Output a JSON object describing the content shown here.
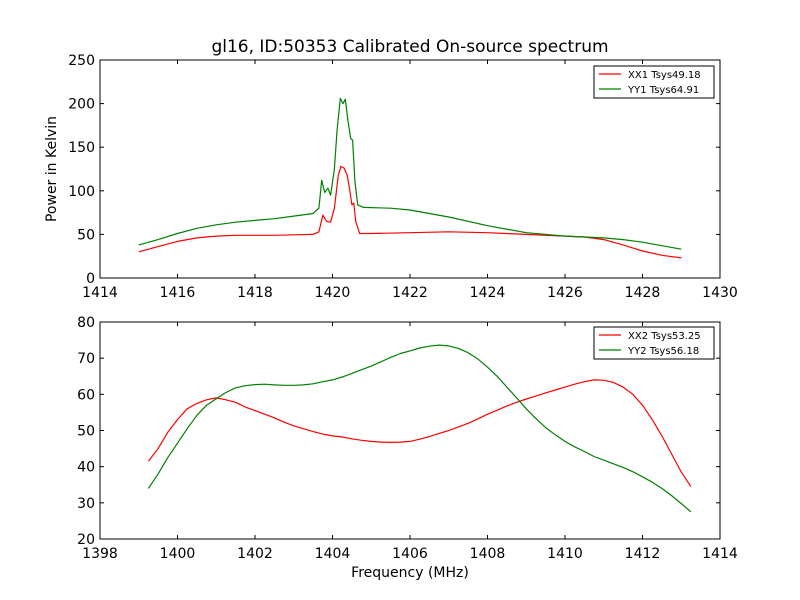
{
  "chart_data": [
    {
      "type": "line",
      "title": "gl16, ID:50353 Calibrated On-source spectrum",
      "xlabel": "",
      "ylabel": "Power in Kelvin",
      "xlim": [
        1414,
        1430
      ],
      "ylim": [
        0,
        250
      ],
      "xticks": [
        "1414",
        "1416",
        "1418",
        "1420",
        "1422",
        "1424",
        "1426",
        "1428",
        "1430"
      ],
      "yticks": [
        "0",
        "50",
        "100",
        "150",
        "200",
        "250"
      ],
      "grid": false,
      "legend": "top-right",
      "series": [
        {
          "name": "XX1 Tsys49.18",
          "color": "#ff0000",
          "points": [
            [
              1415.0,
              30
            ],
            [
              1415.5,
              36
            ],
            [
              1416.0,
              42
            ],
            [
              1416.5,
              46
            ],
            [
              1417.0,
              48
            ],
            [
              1417.5,
              49
            ],
            [
              1418.0,
              49
            ],
            [
              1418.5,
              49
            ],
            [
              1419.0,
              49.5
            ],
            [
              1419.5,
              50
            ],
            [
              1419.65,
              53
            ],
            [
              1419.75,
              72
            ],
            [
              1419.85,
              65
            ],
            [
              1419.95,
              64
            ],
            [
              1420.05,
              80
            ],
            [
              1420.15,
              118
            ],
            [
              1420.22,
              128
            ],
            [
              1420.3,
              126
            ],
            [
              1420.38,
              118
            ],
            [
              1420.45,
              100
            ],
            [
              1420.5,
              84
            ],
            [
              1420.55,
              86
            ],
            [
              1420.6,
              65
            ],
            [
              1420.7,
              51
            ],
            [
              1421.0,
              51
            ],
            [
              1422.0,
              52
            ],
            [
              1423.0,
              53
            ],
            [
              1424.0,
              52
            ],
            [
              1425.0,
              50
            ],
            [
              1426.0,
              48
            ],
            [
              1426.5,
              47
            ],
            [
              1427.0,
              44
            ],
            [
              1427.5,
              38
            ],
            [
              1428.0,
              31
            ],
            [
              1428.5,
              26
            ],
            [
              1429.0,
              23
            ]
          ]
        },
        {
          "name": "YY1 Tsys64.91",
          "color": "#008000",
          "points": [
            [
              1415.0,
              38
            ],
            [
              1415.5,
              44
            ],
            [
              1416.0,
              51
            ],
            [
              1416.5,
              57
            ],
            [
              1417.0,
              61
            ],
            [
              1417.5,
              64
            ],
            [
              1418.0,
              66
            ],
            [
              1418.5,
              68
            ],
            [
              1419.0,
              71
            ],
            [
              1419.5,
              74
            ],
            [
              1419.65,
              80
            ],
            [
              1419.72,
              112
            ],
            [
              1419.8,
              98
            ],
            [
              1419.88,
              103
            ],
            [
              1419.95,
              95
            ],
            [
              1420.05,
              125
            ],
            [
              1420.12,
              170
            ],
            [
              1420.2,
              206
            ],
            [
              1420.27,
              200
            ],
            [
              1420.33,
              205
            ],
            [
              1420.4,
              180
            ],
            [
              1420.47,
              160
            ],
            [
              1420.52,
              158
            ],
            [
              1420.58,
              110
            ],
            [
              1420.65,
              84
            ],
            [
              1420.8,
              81
            ],
            [
              1421.5,
              80
            ],
            [
              1422.0,
              78
            ],
            [
              1423.0,
              70
            ],
            [
              1424.0,
              60
            ],
            [
              1425.0,
              52
            ],
            [
              1426.0,
              48
            ],
            [
              1427.0,
              46
            ],
            [
              1427.5,
              44
            ],
            [
              1428.0,
              41
            ],
            [
              1428.5,
              37
            ],
            [
              1429.0,
              33
            ]
          ]
        }
      ]
    },
    {
      "type": "line",
      "title": "",
      "xlabel": "Frequency (MHz)",
      "ylabel": "",
      "xlim": [
        1398,
        1414
      ],
      "ylim": [
        20,
        80
      ],
      "xticks": [
        "1398",
        "1400",
        "1402",
        "1404",
        "1406",
        "1408",
        "1410",
        "1412",
        "1414"
      ],
      "yticks": [
        "20",
        "30",
        "40",
        "50",
        "60",
        "70",
        "80"
      ],
      "grid": false,
      "legend": "top-right",
      "series": [
        {
          "name": "XX2 Tsys53.25",
          "color": "#ff0000",
          "points": [
            [
              1399.25,
              41.5
            ],
            [
              1399.5,
              45
            ],
            [
              1399.75,
              49.5
            ],
            [
              1400.0,
              53
            ],
            [
              1400.25,
              56
            ],
            [
              1400.5,
              57.5
            ],
            [
              1400.75,
              58.5
            ],
            [
              1401.0,
              59
            ],
            [
              1401.25,
              58.5
            ],
            [
              1401.5,
              57.8
            ],
            [
              1401.75,
              56.5
            ],
            [
              1402.0,
              55.5
            ],
            [
              1402.25,
              54.5
            ],
            [
              1402.5,
              53.5
            ],
            [
              1402.75,
              52.3
            ],
            [
              1403.0,
              51.3
            ],
            [
              1403.25,
              50.5
            ],
            [
              1403.5,
              49.7
            ],
            [
              1403.75,
              49
            ],
            [
              1404.0,
              48.5
            ],
            [
              1404.25,
              48.2
            ],
            [
              1404.5,
              47.7
            ],
            [
              1404.75,
              47.3
            ],
            [
              1405.0,
              47
            ],
            [
              1405.25,
              46.8
            ],
            [
              1405.5,
              46.7
            ],
            [
              1405.75,
              46.8
            ],
            [
              1406.0,
              47
            ],
            [
              1406.25,
              47.6
            ],
            [
              1406.5,
              48.3
            ],
            [
              1406.75,
              49.2
            ],
            [
              1407.0,
              50
            ],
            [
              1407.25,
              51
            ],
            [
              1407.5,
              52
            ],
            [
              1407.75,
              53.2
            ],
            [
              1408.0,
              54.5
            ],
            [
              1408.25,
              55.6
            ],
            [
              1408.5,
              56.8
            ],
            [
              1408.75,
              57.8
            ],
            [
              1409.0,
              58.7
            ],
            [
              1409.25,
              59.5
            ],
            [
              1409.5,
              60.4
            ],
            [
              1409.75,
              61.2
            ],
            [
              1410.0,
              62
            ],
            [
              1410.25,
              62.8
            ],
            [
              1410.5,
              63.5
            ],
            [
              1410.75,
              64
            ],
            [
              1411.0,
              63.9
            ],
            [
              1411.25,
              63.3
            ],
            [
              1411.5,
              62
            ],
            [
              1411.75,
              60
            ],
            [
              1412.0,
              57
            ],
            [
              1412.25,
              53
            ],
            [
              1412.5,
              48.5
            ],
            [
              1412.75,
              43.5
            ],
            [
              1413.0,
              38.5
            ],
            [
              1413.25,
              34.5
            ]
          ]
        },
        {
          "name": "YY2 Tsys56.18",
          "color": "#008000",
          "points": [
            [
              1399.25,
              34
            ],
            [
              1399.5,
              38
            ],
            [
              1399.75,
              42.5
            ],
            [
              1400.0,
              46.5
            ],
            [
              1400.25,
              50.5
            ],
            [
              1400.5,
              54.2
            ],
            [
              1400.75,
              57
            ],
            [
              1401.0,
              58.8
            ],
            [
              1401.25,
              60.5
            ],
            [
              1401.5,
              61.8
            ],
            [
              1401.75,
              62.4
            ],
            [
              1402.0,
              62.7
            ],
            [
              1402.25,
              62.8
            ],
            [
              1402.5,
              62.6
            ],
            [
              1402.75,
              62.5
            ],
            [
              1403.0,
              62.5
            ],
            [
              1403.25,
              62.6
            ],
            [
              1403.5,
              62.9
            ],
            [
              1403.75,
              63.5
            ],
            [
              1404.0,
              64
            ],
            [
              1404.25,
              64.8
            ],
            [
              1404.5,
              65.8
            ],
            [
              1404.75,
              66.8
            ],
            [
              1405.0,
              67.8
            ],
            [
              1405.25,
              69
            ],
            [
              1405.5,
              70.2
            ],
            [
              1405.75,
              71.3
            ],
            [
              1406.0,
              72
            ],
            [
              1406.25,
              72.8
            ],
            [
              1406.5,
              73.3
            ],
            [
              1406.75,
              73.6
            ],
            [
              1407.0,
              73.4
            ],
            [
              1407.25,
              72.7
            ],
            [
              1407.5,
              71.5
            ],
            [
              1407.75,
              69.8
            ],
            [
              1408.0,
              67.5
            ],
            [
              1408.25,
              65
            ],
            [
              1408.5,
              62
            ],
            [
              1408.75,
              59
            ],
            [
              1409.0,
              56
            ],
            [
              1409.25,
              53.3
            ],
            [
              1409.5,
              50.8
            ],
            [
              1409.75,
              48.8
            ],
            [
              1410.0,
              47
            ],
            [
              1410.25,
              45.5
            ],
            [
              1410.5,
              44.2
            ],
            [
              1410.75,
              42.8
            ],
            [
              1411.0,
              41.8
            ],
            [
              1411.25,
              40.8
            ],
            [
              1411.5,
              39.8
            ],
            [
              1411.75,
              38.6
            ],
            [
              1412.0,
              37.2
            ],
            [
              1412.25,
              35.7
            ],
            [
              1412.5,
              34
            ],
            [
              1412.75,
              32
            ],
            [
              1413.0,
              29.8
            ],
            [
              1413.25,
              27.5
            ]
          ]
        }
      ]
    }
  ]
}
